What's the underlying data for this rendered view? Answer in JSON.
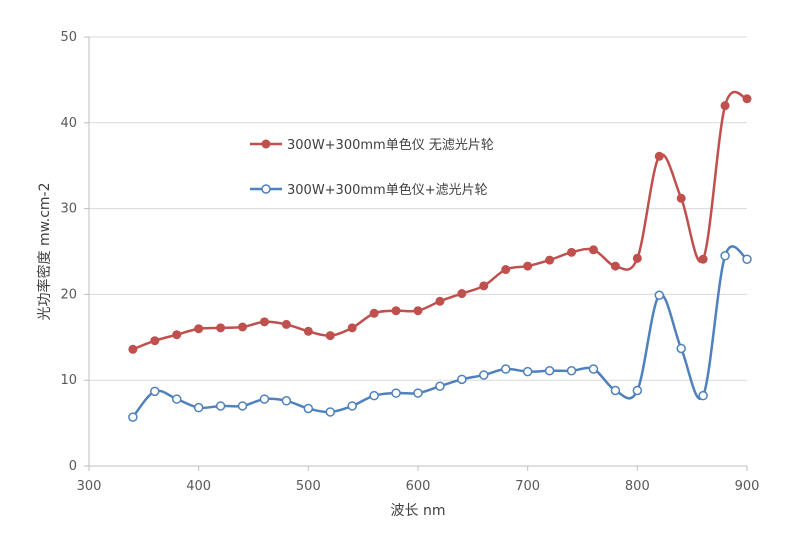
{
  "chart_data": {
    "type": "line",
    "title": "",
    "xlabel": "波长 nm",
    "ylabel": "光功率密度 mw.cm-2",
    "xlim": [
      300,
      900
    ],
    "ylim": [
      0,
      50
    ],
    "x_ticks": [
      300,
      400,
      500,
      600,
      700,
      800,
      900
    ],
    "y_ticks": [
      0,
      10,
      20,
      30,
      40,
      50
    ],
    "grid": "horizontal",
    "smooth": true,
    "legend_position": "upper-middle",
    "series": [
      {
        "name": "300W+300mm单色仪  无滤光片轮",
        "color": "#C0504D",
        "marker": "filled-circle",
        "x": [
          340,
          360,
          380,
          400,
          420,
          440,
          460,
          480,
          500,
          520,
          540,
          560,
          580,
          600,
          620,
          640,
          660,
          680,
          700,
          720,
          740,
          760,
          780,
          800,
          820,
          840,
          860,
          880,
          900
        ],
        "y": [
          13.6,
          14.6,
          15.3,
          16.0,
          16.1,
          16.2,
          16.8,
          16.5,
          15.7,
          15.2,
          16.1,
          17.8,
          18.1,
          18.1,
          19.2,
          20.1,
          21.0,
          22.9,
          23.3,
          24.0,
          24.9,
          25.2,
          23.3,
          24.2,
          36.1,
          31.2,
          24.1,
          42.0,
          42.8
        ]
      },
      {
        "name": "300W+300mm单色仪+滤光片轮",
        "color": "#4F81BD",
        "marker": "hollow-circle",
        "x": [
          340,
          360,
          380,
          400,
          420,
          440,
          460,
          480,
          500,
          520,
          540,
          560,
          580,
          600,
          620,
          640,
          660,
          680,
          700,
          720,
          740,
          760,
          780,
          800,
          820,
          840,
          860,
          880,
          900
        ],
        "y": [
          5.7,
          8.7,
          7.8,
          6.8,
          7.0,
          7.0,
          7.8,
          7.6,
          6.7,
          6.3,
          7.0,
          8.2,
          8.5,
          8.5,
          9.3,
          10.1,
          10.6,
          11.3,
          11.0,
          11.1,
          11.1,
          11.3,
          8.8,
          8.8,
          19.9,
          13.7,
          8.2,
          24.5,
          24.1
        ]
      }
    ]
  }
}
